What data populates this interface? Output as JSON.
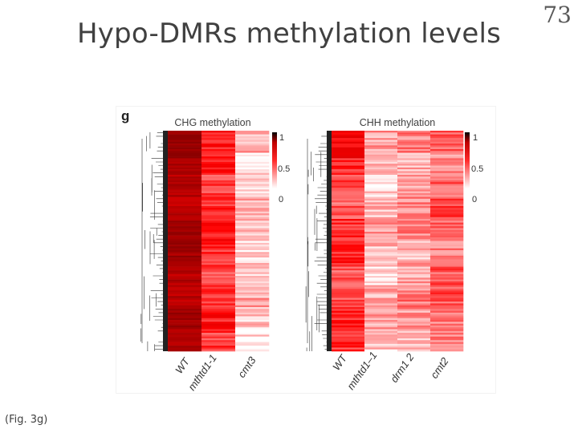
{
  "slide": {
    "title": "Hypo-DMRs methylation levels",
    "number": "73",
    "caption": "(Fig. 3g)"
  },
  "figure": {
    "panel_letter": "g"
  },
  "colors": {
    "high": "#c00000",
    "mid": "#ff0000",
    "low": "#ffffff",
    "text": "#404040"
  },
  "chart_data": [
    {
      "type": "heatmap",
      "title": "CHG methylation",
      "columns": [
        "WT",
        "mthtd1-1",
        "cmt3"
      ],
      "column_mean_levels": [
        0.85,
        0.42,
        0.12
      ],
      "colorbar": {
        "ticks": [
          "1",
          "0.5",
          "0"
        ],
        "range": [
          0,
          1
        ]
      }
    },
    {
      "type": "heatmap",
      "title": "CHH methylation",
      "columns": [
        "WT",
        "mthtd1–1",
        "drm1 2",
        "cmt2"
      ],
      "column_mean_levels": [
        0.38,
        0.14,
        0.2,
        0.3
      ],
      "colorbar": {
        "ticks": [
          "1",
          "0.5",
          "0"
        ],
        "range": [
          0,
          1
        ]
      }
    }
  ]
}
